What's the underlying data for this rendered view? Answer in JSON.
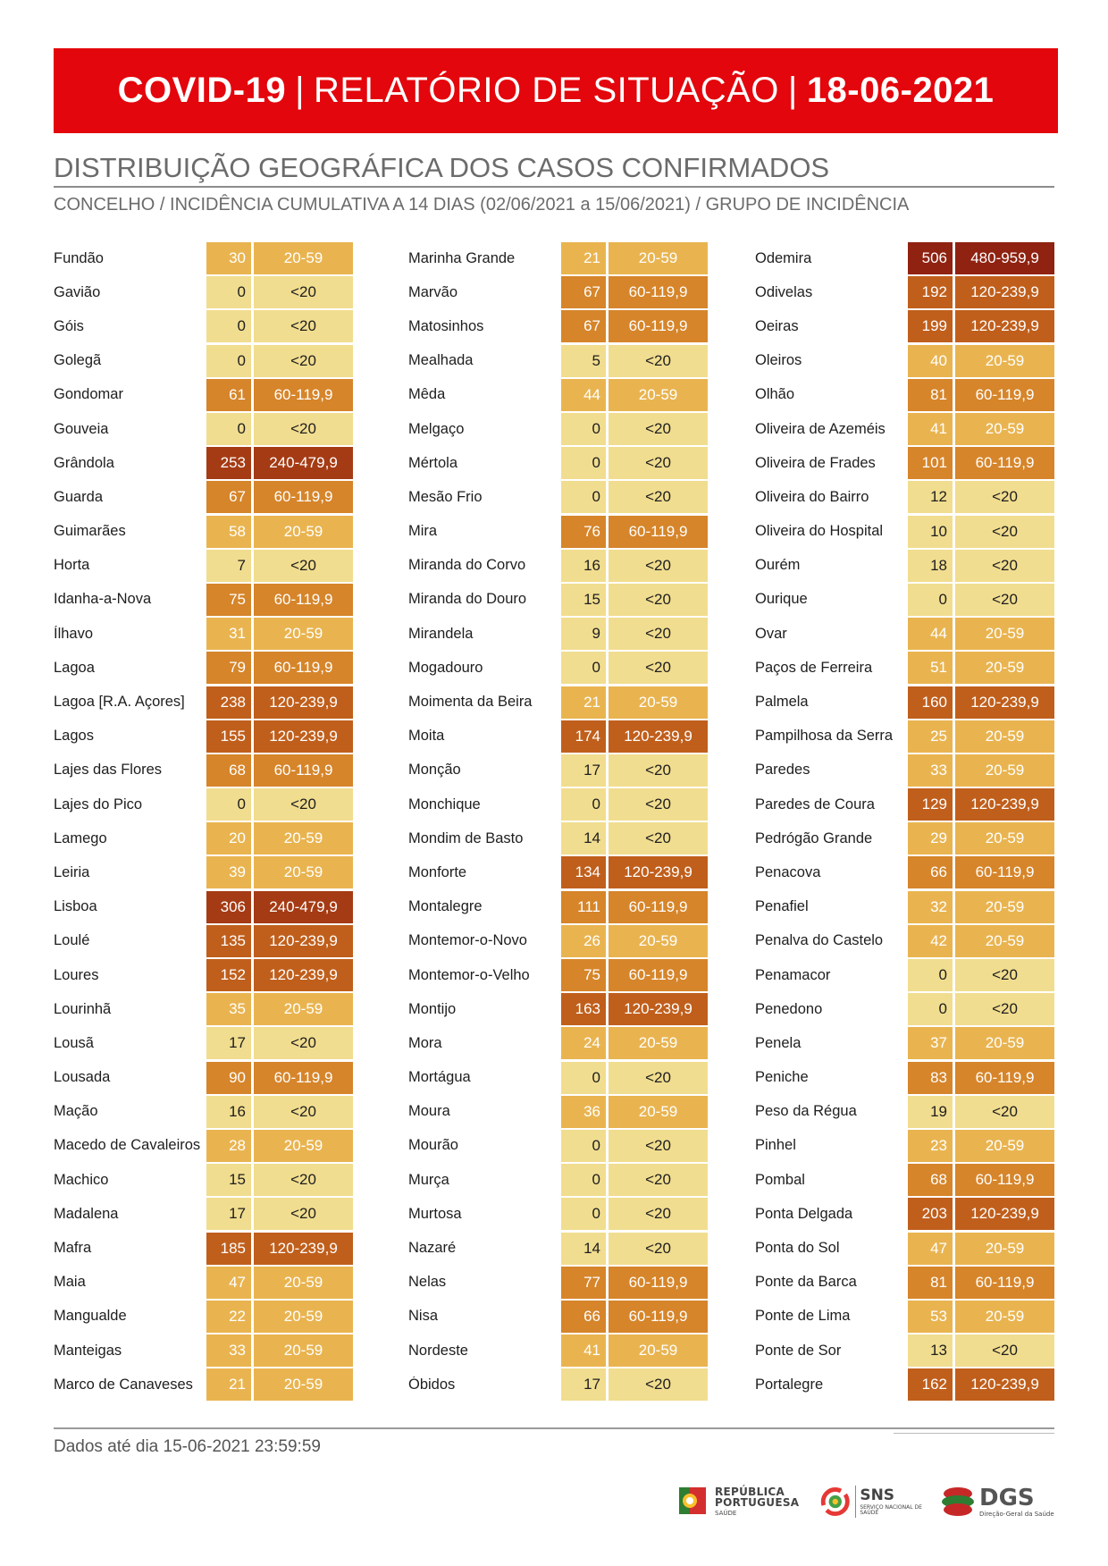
{
  "header": {
    "title_bold": "COVID-19",
    "title_mid": "RELATÓRIO DE SITUAÇÃO",
    "title_date": "18-06-2021",
    "separator": "|"
  },
  "section": {
    "title": "DISTRIBUIÇÃO GEOGRÁFICA DOS CASOS CONFIRMADOS",
    "subtitle": "CONCELHO / INCIDÊNCIA CUMULATIVA A 14 DIAS (02/06/2021 a 15/06/2021) / GRUPO DE INCIDÊNCIA"
  },
  "group_colors": {
    "<20": "#f1dd8f",
    "20-59": "#e9b450",
    "60-119,9": "#d6852a",
    "120-239,9": "#c05f1c",
    "240-479,9": "#a53b14",
    "480-959,9": "#8f2211"
  },
  "columns": [
    [
      {
        "name": "Fundão",
        "value": "30",
        "group": "20-59"
      },
      {
        "name": "Gavião",
        "value": "0",
        "group": "<20"
      },
      {
        "name": "Góis",
        "value": "0",
        "group": "<20"
      },
      {
        "name": "Golegã",
        "value": "0",
        "group": "<20"
      },
      {
        "name": "Gondomar",
        "value": "61",
        "group": "60-119,9"
      },
      {
        "name": "Gouveia",
        "value": "0",
        "group": "<20"
      },
      {
        "name": "Grândola",
        "value": "253",
        "group": "240-479,9"
      },
      {
        "name": "Guarda",
        "value": "67",
        "group": "60-119,9"
      },
      {
        "name": "Guimarães",
        "value": "58",
        "group": "20-59"
      },
      {
        "name": "Horta",
        "value": "7",
        "group": "<20"
      },
      {
        "name": "Idanha-a-Nova",
        "value": "75",
        "group": "60-119,9"
      },
      {
        "name": "Ílhavo",
        "value": "31",
        "group": "20-59"
      },
      {
        "name": "Lagoa",
        "value": "79",
        "group": "60-119,9"
      },
      {
        "name": "Lagoa [R.A. Açores]",
        "value": "238",
        "group": "120-239,9"
      },
      {
        "name": "Lagos",
        "value": "155",
        "group": "120-239,9"
      },
      {
        "name": "Lajes das Flores",
        "value": "68",
        "group": "60-119,9"
      },
      {
        "name": "Lajes do Pico",
        "value": "0",
        "group": "<20"
      },
      {
        "name": "Lamego",
        "value": "20",
        "group": "20-59"
      },
      {
        "name": "Leiria",
        "value": "39",
        "group": "20-59"
      },
      {
        "name": "Lisboa",
        "value": "306",
        "group": "240-479,9"
      },
      {
        "name": "Loulé",
        "value": "135",
        "group": "120-239,9"
      },
      {
        "name": "Loures",
        "value": "152",
        "group": "120-239,9"
      },
      {
        "name": "Lourinhã",
        "value": "35",
        "group": "20-59"
      },
      {
        "name": "Lousã",
        "value": "17",
        "group": "<20"
      },
      {
        "name": "Lousada",
        "value": "90",
        "group": "60-119,9"
      },
      {
        "name": "Mação",
        "value": "16",
        "group": "<20"
      },
      {
        "name": "Macedo de Cavaleiros",
        "value": "28",
        "group": "20-59"
      },
      {
        "name": "Machico",
        "value": "15",
        "group": "<20"
      },
      {
        "name": "Madalena",
        "value": "17",
        "group": "<20"
      },
      {
        "name": "Mafra",
        "value": "185",
        "group": "120-239,9"
      },
      {
        "name": "Maia",
        "value": "47",
        "group": "20-59"
      },
      {
        "name": "Mangualde",
        "value": "22",
        "group": "20-59"
      },
      {
        "name": "Manteigas",
        "value": "33",
        "group": "20-59"
      },
      {
        "name": "Marco de Canaveses",
        "value": "21",
        "group": "20-59"
      }
    ],
    [
      {
        "name": "Marinha Grande",
        "value": "21",
        "group": "20-59"
      },
      {
        "name": "Marvão",
        "value": "67",
        "group": "60-119,9"
      },
      {
        "name": "Matosinhos",
        "value": "67",
        "group": "60-119,9"
      },
      {
        "name": "Mealhada",
        "value": "5",
        "group": "<20"
      },
      {
        "name": "Mêda",
        "value": "44",
        "group": "20-59"
      },
      {
        "name": "Melgaço",
        "value": "0",
        "group": "<20"
      },
      {
        "name": "Mértola",
        "value": "0",
        "group": "<20"
      },
      {
        "name": "Mesão Frio",
        "value": "0",
        "group": "<20"
      },
      {
        "name": "Mira",
        "value": "76",
        "group": "60-119,9"
      },
      {
        "name": "Miranda do Corvo",
        "value": "16",
        "group": "<20"
      },
      {
        "name": "Miranda do Douro",
        "value": "15",
        "group": "<20"
      },
      {
        "name": "Mirandela",
        "value": "9",
        "group": "<20"
      },
      {
        "name": "Mogadouro",
        "value": "0",
        "group": "<20"
      },
      {
        "name": "Moimenta da Beira",
        "value": "21",
        "group": "20-59"
      },
      {
        "name": "Moita",
        "value": "174",
        "group": "120-239,9"
      },
      {
        "name": "Monção",
        "value": "17",
        "group": "<20"
      },
      {
        "name": "Monchique",
        "value": "0",
        "group": "<20"
      },
      {
        "name": "Mondim de Basto",
        "value": "14",
        "group": "<20"
      },
      {
        "name": "Monforte",
        "value": "134",
        "group": "120-239,9"
      },
      {
        "name": "Montalegre",
        "value": "111",
        "group": "60-119,9"
      },
      {
        "name": "Montemor-o-Novo",
        "value": "26",
        "group": "20-59"
      },
      {
        "name": "Montemor-o-Velho",
        "value": "75",
        "group": "60-119,9"
      },
      {
        "name": "Montijo",
        "value": "163",
        "group": "120-239,9"
      },
      {
        "name": "Mora",
        "value": "24",
        "group": "20-59"
      },
      {
        "name": "Mortágua",
        "value": "0",
        "group": "<20"
      },
      {
        "name": "Moura",
        "value": "36",
        "group": "20-59"
      },
      {
        "name": "Mourão",
        "value": "0",
        "group": "<20"
      },
      {
        "name": "Murça",
        "value": "0",
        "group": "<20"
      },
      {
        "name": "Murtosa",
        "value": "0",
        "group": "<20"
      },
      {
        "name": "Nazaré",
        "value": "14",
        "group": "<20"
      },
      {
        "name": "Nelas",
        "value": "77",
        "group": "60-119,9"
      },
      {
        "name": "Nisa",
        "value": "66",
        "group": "60-119,9"
      },
      {
        "name": "Nordeste",
        "value": "41",
        "group": "20-59"
      },
      {
        "name": "Óbidos",
        "value": "17",
        "group": "<20"
      }
    ],
    [
      {
        "name": "Odemira",
        "value": "506",
        "group": "480-959,9"
      },
      {
        "name": "Odivelas",
        "value": "192",
        "group": "120-239,9"
      },
      {
        "name": "Oeiras",
        "value": "199",
        "group": "120-239,9"
      },
      {
        "name": "Oleiros",
        "value": "40",
        "group": "20-59"
      },
      {
        "name": "Olhão",
        "value": "81",
        "group": "60-119,9"
      },
      {
        "name": "Oliveira de Azeméis",
        "value": "41",
        "group": "20-59"
      },
      {
        "name": "Oliveira de Frades",
        "value": "101",
        "group": "60-119,9"
      },
      {
        "name": "Oliveira do Bairro",
        "value": "12",
        "group": "<20"
      },
      {
        "name": "Oliveira do Hospital",
        "value": "10",
        "group": "<20"
      },
      {
        "name": "Ourém",
        "value": "18",
        "group": "<20"
      },
      {
        "name": "Ourique",
        "value": "0",
        "group": "<20"
      },
      {
        "name": "Ovar",
        "value": "44",
        "group": "20-59"
      },
      {
        "name": "Paços de Ferreira",
        "value": "51",
        "group": "20-59"
      },
      {
        "name": "Palmela",
        "value": "160",
        "group": "120-239,9"
      },
      {
        "name": "Pampilhosa da Serra",
        "value": "25",
        "group": "20-59"
      },
      {
        "name": "Paredes",
        "value": "33",
        "group": "20-59"
      },
      {
        "name": "Paredes de Coura",
        "value": "129",
        "group": "120-239,9"
      },
      {
        "name": "Pedrógão Grande",
        "value": "29",
        "group": "20-59"
      },
      {
        "name": "Penacova",
        "value": "66",
        "group": "60-119,9"
      },
      {
        "name": "Penafiel",
        "value": "32",
        "group": "20-59"
      },
      {
        "name": "Penalva do Castelo",
        "value": "42",
        "group": "20-59"
      },
      {
        "name": "Penamacor",
        "value": "0",
        "group": "<20"
      },
      {
        "name": "Penedono",
        "value": "0",
        "group": "<20"
      },
      {
        "name": "Penela",
        "value": "37",
        "group": "20-59"
      },
      {
        "name": "Peniche",
        "value": "83",
        "group": "60-119,9"
      },
      {
        "name": "Peso da Régua",
        "value": "19",
        "group": "<20"
      },
      {
        "name": "Pinhel",
        "value": "23",
        "group": "20-59"
      },
      {
        "name": "Pombal",
        "value": "68",
        "group": "60-119,9"
      },
      {
        "name": "Ponta Delgada",
        "value": "203",
        "group": "120-239,9"
      },
      {
        "name": "Ponta do Sol",
        "value": "47",
        "group": "20-59"
      },
      {
        "name": "Ponte da Barca",
        "value": "81",
        "group": "60-119,9"
      },
      {
        "name": "Ponte de Lima",
        "value": "53",
        "group": "20-59"
      },
      {
        "name": "Ponte de Sor",
        "value": "13",
        "group": "<20"
      },
      {
        "name": "Portalegre",
        "value": "162",
        "group": "120-239,9"
      }
    ]
  ],
  "footer": {
    "note": "Dados até dia 15-06-2021 23:59:59",
    "logo_republica_line1": "REPÚBLICA",
    "logo_republica_line2": "PORTUGUESA",
    "logo_republica_line3": "SAÚDE",
    "logo_sns_line1": "SNS",
    "logo_sns_line2": "SERVIÇO NACIONAL DE SAÚDE",
    "logo_dgs_line1": "DGS",
    "logo_dgs_line2": "Direção-Geral da Saúde"
  }
}
